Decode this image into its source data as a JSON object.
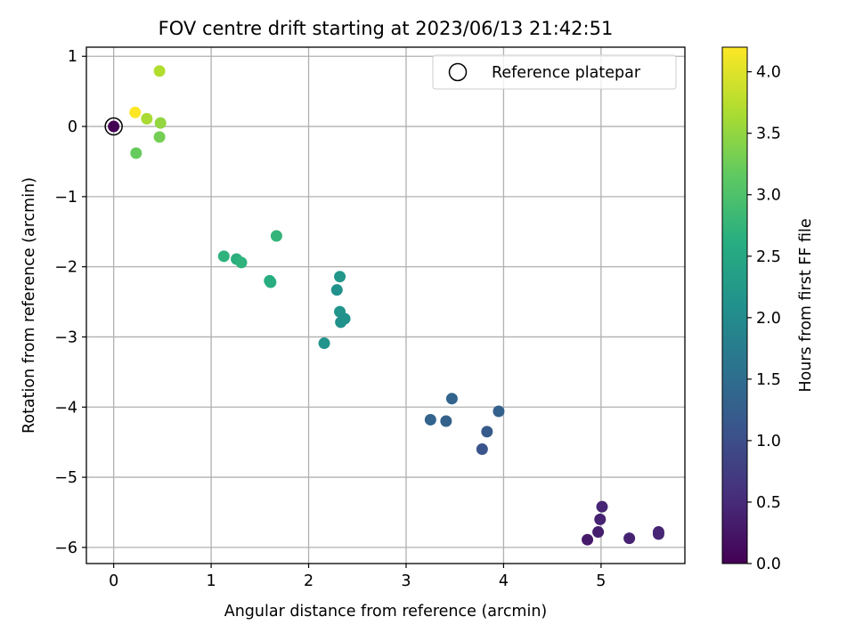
{
  "chart_data": {
    "type": "scatter",
    "title": "FOV centre drift starting at 2023/06/13 21:42:51",
    "xlabel": "Angular distance from reference (arcmin)",
    "ylabel": "Rotation from reference (arcmin)",
    "xlim": [
      -0.28,
      5.86
    ],
    "ylim": [
      -6.23,
      1.13
    ],
    "xticks": [
      0,
      1,
      2,
      3,
      4,
      5
    ],
    "yticks": [
      1,
      0,
      -1,
      -2,
      -3,
      -4,
      -5,
      -6
    ],
    "xtick_labels": [
      "0",
      "1",
      "2",
      "3",
      "4",
      "5"
    ],
    "ytick_labels": [
      "1",
      "0",
      "−1",
      "−2",
      "−3",
      "−4",
      "−5",
      "−6"
    ],
    "grid": true,
    "legend": {
      "placement": "top-right",
      "entries": [
        "Reference platepar"
      ]
    },
    "reference_point": {
      "x": 0,
      "y": 0
    },
    "colorbar": {
      "label": "Hours from first FF file",
      "colormap": "viridis",
      "range": [
        0.0,
        4.2
      ],
      "ticks": [
        0.0,
        0.5,
        1.0,
        1.5,
        2.0,
        2.5,
        3.0,
        3.5,
        4.0
      ],
      "tick_labels": [
        "0.0",
        "0.5",
        "1.0",
        "1.5",
        "2.0",
        "2.5",
        "3.0",
        "3.5",
        "4.0"
      ]
    },
    "points": [
      {
        "x": 0.0,
        "y": 0.0,
        "hours": 0.0
      },
      {
        "x": 4.86,
        "y": -5.89,
        "hours": 0.3
      },
      {
        "x": 4.97,
        "y": -5.78,
        "hours": 0.35
      },
      {
        "x": 4.99,
        "y": -5.6,
        "hours": 0.4
      },
      {
        "x": 5.01,
        "y": -5.42,
        "hours": 0.45
      },
      {
        "x": 5.29,
        "y": -5.87,
        "hours": 0.4
      },
      {
        "x": 5.59,
        "y": -5.78,
        "hours": 0.4
      },
      {
        "x": 5.59,
        "y": -5.81,
        "hours": 0.45
      },
      {
        "x": 3.25,
        "y": -4.18,
        "hours": 1.35
      },
      {
        "x": 3.41,
        "y": -4.2,
        "hours": 1.3
      },
      {
        "x": 3.47,
        "y": -3.88,
        "hours": 1.35
      },
      {
        "x": 3.78,
        "y": -4.6,
        "hours": 1.1
      },
      {
        "x": 3.83,
        "y": -4.35,
        "hours": 1.2
      },
      {
        "x": 3.95,
        "y": -4.06,
        "hours": 1.3
      },
      {
        "x": 2.16,
        "y": -3.09,
        "hours": 2.15
      },
      {
        "x": 2.29,
        "y": -2.33,
        "hours": 2.1
      },
      {
        "x": 2.32,
        "y": -2.14,
        "hours": 2.2
      },
      {
        "x": 2.32,
        "y": -2.64,
        "hours": 2.15
      },
      {
        "x": 2.33,
        "y": -2.79,
        "hours": 2.1
      },
      {
        "x": 2.37,
        "y": -2.74,
        "hours": 2.1
      },
      {
        "x": 1.13,
        "y": -1.85,
        "hours": 2.7
      },
      {
        "x": 1.26,
        "y": -1.89,
        "hours": 2.65
      },
      {
        "x": 1.31,
        "y": -1.94,
        "hours": 2.7
      },
      {
        "x": 1.6,
        "y": -2.2,
        "hours": 2.6
      },
      {
        "x": 1.61,
        "y": -2.22,
        "hours": 2.6
      },
      {
        "x": 1.67,
        "y": -1.56,
        "hours": 2.75
      },
      {
        "x": 0.23,
        "y": -0.38,
        "hours": 3.2
      },
      {
        "x": 0.47,
        "y": -0.15,
        "hours": 3.3
      },
      {
        "x": 0.48,
        "y": 0.05,
        "hours": 3.5
      },
      {
        "x": 0.34,
        "y": 0.11,
        "hours": 3.65
      },
      {
        "x": 0.47,
        "y": 0.79,
        "hours": 3.7
      },
      {
        "x": 0.22,
        "y": 0.2,
        "hours": 4.2
      }
    ]
  }
}
